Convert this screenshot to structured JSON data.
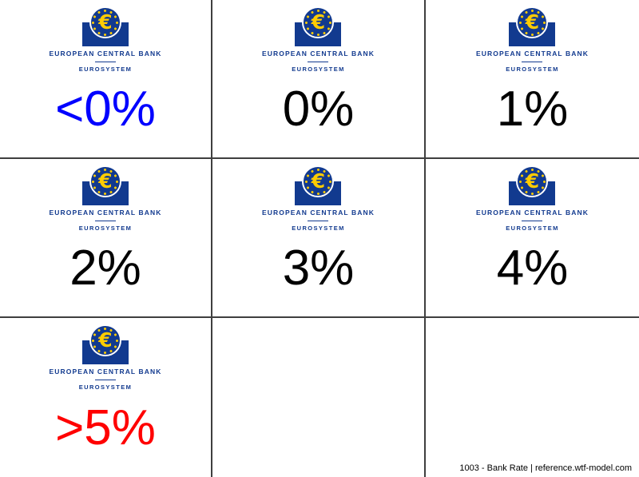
{
  "slide": {
    "background": "#FFFFFF",
    "grid_line_color": "#3F3F3F",
    "rows": 3,
    "columns": 3
  },
  "logo": {
    "euro_symbol": "€",
    "wordmark": "EUROPEAN CENTRAL BANK",
    "subbrand": "EUROSYSTEM",
    "blue": "#123a8f",
    "yellow": "#ffcc00",
    "star_count": 12
  },
  "cells": [
    {
      "rate": "<0%",
      "color": "#0000ff",
      "show_logo": true
    },
    {
      "rate": "0%",
      "color": "#000000",
      "show_logo": true
    },
    {
      "rate": "1%",
      "color": "#000000",
      "show_logo": true
    },
    {
      "rate": "2%",
      "color": "#000000",
      "show_logo": true
    },
    {
      "rate": "3%",
      "color": "#000000",
      "show_logo": true
    },
    {
      "rate": "4%",
      "color": "#000000",
      "show_logo": true
    },
    {
      "rate": ">5%",
      "color": "#ff0000",
      "show_logo": true
    },
    {
      "rate": "",
      "color": "",
      "show_logo": false
    },
    {
      "rate": "",
      "color": "",
      "show_logo": false
    }
  ],
  "footer": {
    "text": "1003 - Bank Rate | reference.wtf-model.com"
  }
}
